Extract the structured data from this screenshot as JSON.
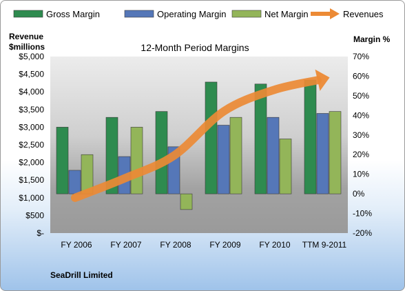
{
  "chart_data": {
    "type": "bar",
    "title": "12-Month Period Margins",
    "company": "SeaDrill Limited",
    "categories": [
      "FY 2006",
      "FY 2007",
      "FY 2008",
      "FY 2009",
      "FY 2010",
      "TTM 9-2011"
    ],
    "left_axis": {
      "label_line1": "Revenue",
      "label_line2": "$millions",
      "min": 0,
      "max": 5000,
      "step": 500,
      "tick_labels": [
        "$-",
        "$500",
        "$1,000",
        "$1,500",
        "$2,000",
        "$2,500",
        "$3,000",
        "$3,500",
        "$4,000",
        "$4,500",
        "$5,000"
      ]
    },
    "right_axis": {
      "label": "Margin %",
      "min": -20,
      "max": 70,
      "step": 10,
      "tick_labels": [
        "-20%",
        "-10%",
        "0%",
        "10%",
        "20%",
        "30%",
        "40%",
        "50%",
        "60%",
        "70%"
      ]
    },
    "series": [
      {
        "name": "Gross Margin",
        "kind": "bar",
        "axis": "right",
        "color": "#2e8b4f",
        "values": [
          34,
          39,
          42,
          57,
          56,
          58
        ]
      },
      {
        "name": "Operating Margin",
        "kind": "bar",
        "axis": "right",
        "color": "#5577b8",
        "values": [
          12,
          19,
          24,
          35,
          39,
          41
        ]
      },
      {
        "name": "Net Margin",
        "kind": "bar",
        "axis": "right",
        "color": "#93b559",
        "values": [
          20,
          34,
          -8,
          39,
          28,
          42
        ]
      },
      {
        "name": "Revenues",
        "kind": "arrow",
        "axis": "left",
        "color": "#ec8a35",
        "values": [
          1000,
          1550,
          2200,
          3450,
          4050,
          4330
        ]
      }
    ],
    "legend_position": "top",
    "grid": false
  }
}
